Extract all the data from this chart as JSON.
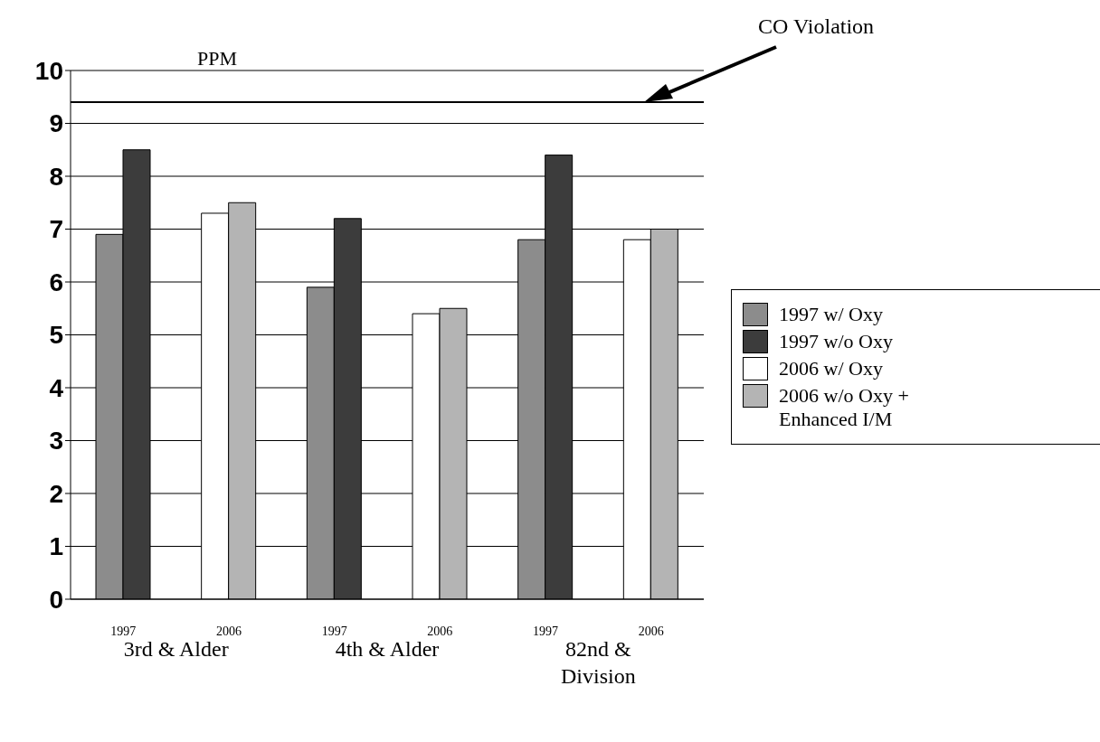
{
  "chart_data": {
    "type": "bar",
    "ylabel": "PPM",
    "categories": [
      "1997",
      "2006",
      "1997",
      "2006",
      "1997",
      "2006"
    ],
    "series": [
      {
        "name": "1997 w/ Oxy",
        "color": "#8c8c8c",
        "values": [
          6.9,
          null,
          5.9,
          null,
          6.8,
          null
        ]
      },
      {
        "name": "1997 w/o Oxy",
        "color": "#3c3c3c",
        "values": [
          8.5,
          null,
          7.2,
          null,
          8.4,
          null
        ]
      },
      {
        "name": "2006 w/ Oxy",
        "color": "#ffffff",
        "values": [
          null,
          7.3,
          null,
          5.4,
          null,
          6.8
        ]
      },
      {
        "name": "2006 w/o Oxy + Enhanced I/M",
        "color": "#b4b4b4",
        "values": [
          null,
          7.5,
          null,
          5.5,
          null,
          7.0
        ]
      }
    ],
    "ylim": [
      0,
      10
    ],
    "yticks": [
      0,
      1,
      2,
      3,
      4,
      5,
      6,
      7,
      8,
      9,
      10
    ],
    "grid": "y",
    "legend": "right",
    "ref_lines": [
      {
        "axis": "y",
        "value": 9.4,
        "label": "CO Violation",
        "color": "#000000"
      }
    ],
    "annotations": [
      "3rd & Alder",
      "4th & Alder",
      "82nd & Division"
    ]
  }
}
